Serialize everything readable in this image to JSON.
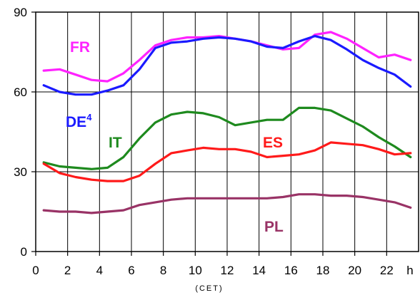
{
  "chart_data": {
    "type": "line",
    "title": "",
    "xlabel": "(CET)",
    "x_unit_label": "h",
    "ylabel": "",
    "xlim": [
      0,
      24
    ],
    "ylim": [
      0,
      90
    ],
    "yticks": [
      "0",
      "30",
      "60",
      "90"
    ],
    "xticks": [
      "0",
      "2",
      "4",
      "6",
      "8",
      "10",
      "12",
      "14",
      "16",
      "18",
      "20",
      "22"
    ],
    "grid": true,
    "x": [
      0.5,
      1.5,
      2.5,
      3.5,
      4.5,
      5.5,
      6.5,
      7.5,
      8.5,
      9.5,
      10.5,
      11.5,
      12.5,
      13.5,
      14.5,
      15.5,
      16.5,
      17.5,
      18.5,
      19.5,
      20.5,
      21.5,
      22.5,
      23.5
    ],
    "series": [
      {
        "name": "FR",
        "sup": "",
        "color": "#ff22ff",
        "values": [
          68,
          68.5,
          66.5,
          64.5,
          64,
          67,
          72,
          77.5,
          79.5,
          80.5,
          80.5,
          81,
          80,
          79,
          77.5,
          76,
          76.5,
          81.5,
          82.5,
          80,
          76.5,
          73,
          74,
          72
        ]
      },
      {
        "name": "DE",
        "sup": "4",
        "color": "#1a1aff",
        "values": [
          62.5,
          60,
          59,
          59,
          60.5,
          62.5,
          68.5,
          76.5,
          78.5,
          79,
          80,
          80.5,
          80,
          79,
          77,
          76.5,
          79,
          81,
          79.5,
          76,
          72,
          69,
          66.5,
          62
        ]
      },
      {
        "name": "IT",
        "sup": "",
        "color": "#1e8a1e",
        "values": [
          33.5,
          32,
          31.5,
          31,
          31.5,
          35.5,
          42.5,
          48.5,
          51.5,
          52.5,
          52,
          50.5,
          47.5,
          48.5,
          49.5,
          49.5,
          54,
          54,
          53,
          50,
          47,
          43,
          39.5,
          35.5
        ]
      },
      {
        "name": "ES",
        "sup": "",
        "color": "#ff1a1a",
        "values": [
          33,
          29.5,
          28,
          27,
          26.5,
          26.5,
          28.5,
          33,
          37,
          38,
          39,
          38.5,
          38.5,
          37.5,
          35.5,
          36,
          36.5,
          38,
          41,
          40.5,
          40,
          38.5,
          36.5,
          37
        ]
      },
      {
        "name": "PL",
        "sup": "",
        "color": "#993366",
        "values": [
          15.5,
          15,
          15,
          14.5,
          15,
          15.5,
          17.5,
          18.5,
          19.5,
          20,
          20,
          20,
          20,
          20,
          20,
          20.5,
          21.5,
          21.5,
          21,
          21,
          20.5,
          19.5,
          18.5,
          16.5
        ]
      }
    ]
  }
}
